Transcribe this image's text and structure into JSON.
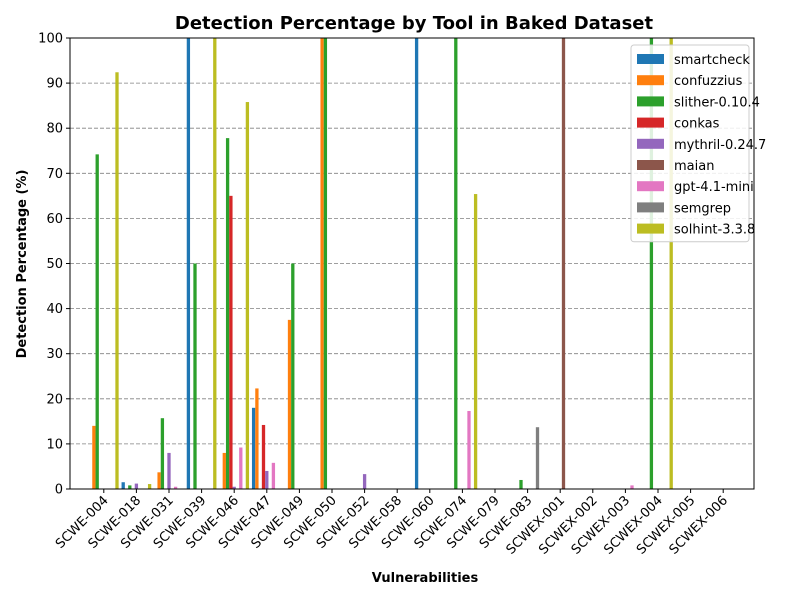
{
  "chart_data": {
    "type": "bar",
    "title": "Detection Percentage by Tool in Baked Dataset",
    "xlabel": "Vulnerabilities",
    "ylabel": "Detection Percentage (%)",
    "ylim": [
      0,
      100
    ],
    "yticks": [
      0,
      10,
      20,
      30,
      40,
      50,
      60,
      70,
      80,
      90,
      100
    ],
    "grid": "horizontal-dashed",
    "legend_position": "top-right",
    "categories": [
      "SCWE-004",
      "SCWE-018",
      "SCWE-031",
      "SCWE-039",
      "SCWE-046",
      "SCWE-047",
      "SCWE-049",
      "SCWE-050",
      "SCWE-052",
      "SCWE-058",
      "SCWE-060",
      "SCWE-074",
      "SCWE-079",
      "SCWE-083",
      "SCWEX-001",
      "SCWEX-002",
      "SCWEX-003",
      "SCWEX-004",
      "SCWEX-005",
      "SCWEX-006"
    ],
    "series": [
      {
        "name": "smartcheck",
        "color": "#1f77b4",
        "values": [
          0,
          1.5,
          0,
          100,
          0,
          18,
          0,
          0,
          0,
          0,
          100,
          0,
          0,
          0,
          0,
          0,
          0,
          0,
          0,
          0
        ]
      },
      {
        "name": "confuzzius",
        "color": "#ff7f0e",
        "values": [
          14,
          0,
          3.7,
          0,
          8,
          22.3,
          37.5,
          100,
          0,
          0,
          0,
          0,
          0,
          0,
          0,
          0,
          0,
          0,
          0,
          0
        ]
      },
      {
        "name": "slither-0.10.4",
        "color": "#2ca02c",
        "values": [
          74.2,
          0.8,
          15.7,
          50,
          77.8,
          0,
          50,
          100,
          0,
          0,
          0,
          100,
          0,
          2,
          0,
          0,
          0,
          100,
          0,
          0
        ]
      },
      {
        "name": "conkas",
        "color": "#d62728",
        "values": [
          0,
          0,
          0,
          0,
          65,
          14.2,
          0,
          0,
          0,
          0,
          0,
          0,
          0,
          0,
          0,
          0,
          0,
          0,
          0,
          0
        ]
      },
      {
        "name": "mythril-0.24.7",
        "color": "#9467bd",
        "values": [
          0,
          1.2,
          8,
          0,
          0.5,
          4,
          0,
          0,
          3.3,
          0,
          0,
          0,
          0,
          0,
          0,
          0,
          0,
          0,
          0,
          0
        ]
      },
      {
        "name": "maian",
        "color": "#8c564b",
        "values": [
          0,
          0,
          0,
          0,
          0,
          0,
          0,
          0,
          0,
          0,
          0,
          0,
          0,
          0,
          100,
          0,
          0,
          0,
          0,
          0
        ]
      },
      {
        "name": "gpt-4.1-mini",
        "color": "#e377c2",
        "values": [
          0,
          0,
          0.5,
          0,
          9.2,
          5.8,
          0,
          0,
          0,
          0,
          0,
          17.3,
          0,
          0,
          0,
          0,
          0.8,
          0,
          0,
          0
        ]
      },
      {
        "name": "semgrep",
        "color": "#7f7f7f",
        "values": [
          0,
          0,
          0,
          0,
          0,
          0,
          0,
          0,
          0,
          0,
          0,
          0,
          0,
          13.7,
          0,
          0,
          0,
          0,
          0,
          0
        ]
      },
      {
        "name": "solhint-3.3.8",
        "color": "#bcbd22",
        "values": [
          92.4,
          1.1,
          0,
          100,
          85.8,
          0,
          0,
          0,
          0,
          0,
          0,
          65.4,
          0,
          0,
          0,
          0,
          0,
          100,
          0,
          0
        ]
      }
    ]
  }
}
